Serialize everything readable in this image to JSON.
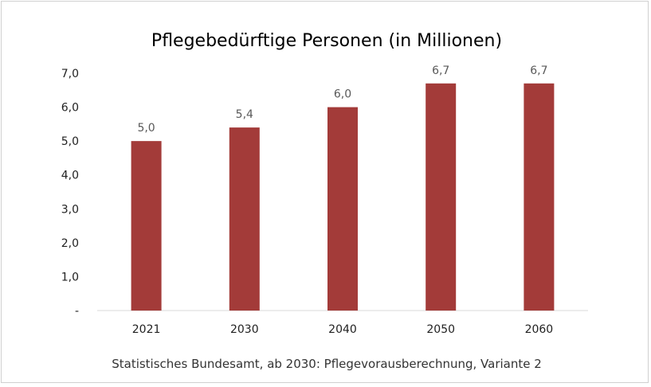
{
  "chart_data": {
    "type": "bar",
    "title": "Pflegebedürftige Personen (in Millionen)",
    "categories": [
      "2021",
      "2030",
      "2040",
      "2050",
      "2060"
    ],
    "values": [
      5.0,
      5.4,
      6.0,
      6.7,
      6.7
    ],
    "value_labels": [
      "5,0",
      "5,4",
      "6,0",
      "6,7",
      "6,7"
    ],
    "y_ticks": [
      {
        "value": 0,
        "label": "-"
      },
      {
        "value": 1,
        "label": "1,0"
      },
      {
        "value": 2,
        "label": "2,0"
      },
      {
        "value": 3,
        "label": "3,0"
      },
      {
        "value": 4,
        "label": "4,0"
      },
      {
        "value": 5,
        "label": "5,0"
      },
      {
        "value": 6,
        "label": "6,0"
      },
      {
        "value": 7,
        "label": "7,0"
      }
    ],
    "ylim": [
      0,
      7
    ],
    "xlabel": "",
    "ylabel": "",
    "grid": false,
    "legend": "none",
    "bar_color": "#a33b39",
    "source": "Statistisches Bundesamt, ab 2030: Pflegevorausberechnung, Variante 2"
  }
}
